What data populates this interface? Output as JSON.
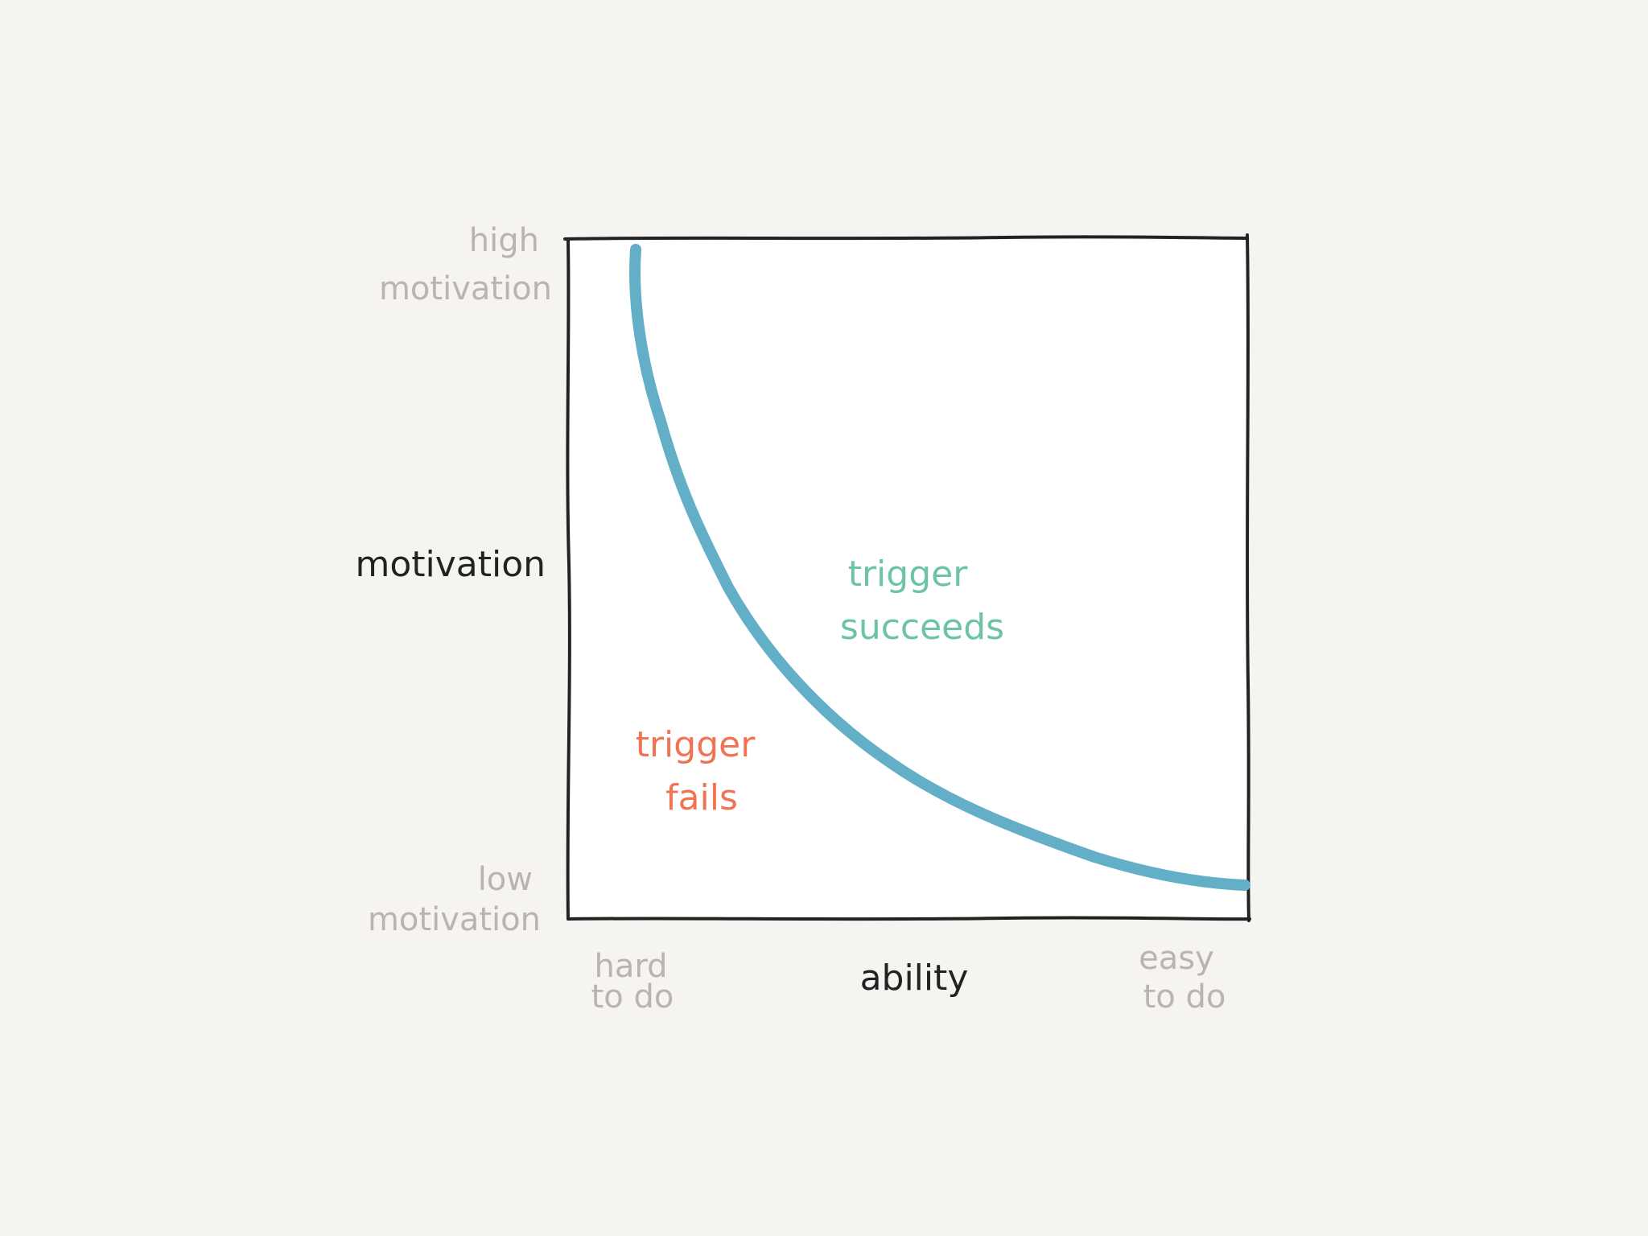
{
  "axes": {
    "y_label": "motivation",
    "y_high": [
      "high",
      "motivation"
    ],
    "y_low": [
      "low",
      "motivation"
    ],
    "x_label": "ability",
    "x_low": [
      "hard",
      "to do"
    ],
    "x_high": [
      "easy",
      "to do"
    ]
  },
  "regions": {
    "succeeds": [
      "trigger",
      "succeeds"
    ],
    "fails": [
      "trigger",
      "fails"
    ]
  },
  "colors": {
    "background": "#f5f4f1",
    "plot": "#ffffff",
    "axis": "#222222",
    "muted": "#b9b5ae",
    "curve": "#64afc8",
    "succeeds": "#6cc3a6",
    "fails": "#f07454"
  }
}
